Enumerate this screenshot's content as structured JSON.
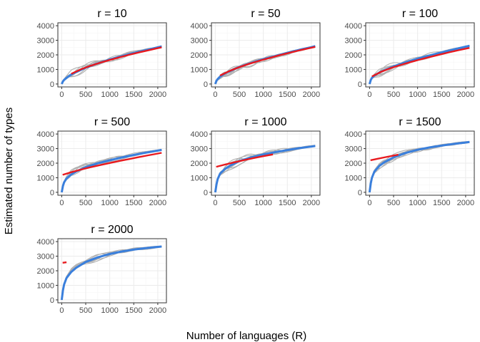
{
  "chart_data": {
    "type": "line",
    "xlabel": "Number of languages (R)",
    "ylabel": "Estimated number of types",
    "xlim": [
      0,
      2100
    ],
    "ylim": [
      0,
      4000
    ],
    "x_ticks": [
      0,
      500,
      1000,
      1500,
      2000
    ],
    "y_ticks": [
      0,
      1000,
      2000,
      3000,
      4000
    ],
    "x_tick_labels": [
      "0",
      "500",
      "1000",
      "1500",
      "2000"
    ],
    "y_tick_labels": [
      "0",
      "1000",
      "2000",
      "3000",
      "4000"
    ],
    "grid": true,
    "legend": "none",
    "colors": {
      "panel_border": "#333333",
      "grid_major": "#ebebeb",
      "grid_minor": "#f5f5f5",
      "replicates": "#b0b0b0",
      "mean_curve": "#3a7fdc",
      "fit_curve": "#e8191e"
    },
    "panels": [
      {
        "title": "r = 10",
        "mean": {
          "x": [
            0,
            25,
            50,
            100,
            200,
            300,
            500,
            750,
            1000,
            1250,
            1500,
            1750,
            2000,
            2080
          ],
          "y": [
            0,
            180,
            280,
            420,
            650,
            820,
            1120,
            1420,
            1680,
            1910,
            2130,
            2330,
            2520,
            2580
          ]
        },
        "fit": {
          "x": [
            200,
            400,
            600,
            800,
            1000,
            1200,
            1400,
            1600,
            1800,
            2000,
            2080
          ],
          "y": [
            700,
            1010,
            1250,
            1460,
            1650,
            1830,
            2000,
            2160,
            2310,
            2460,
            2520
          ]
        }
      },
      {
        "title": "r = 50",
        "mean": {
          "x": [
            0,
            25,
            50,
            100,
            200,
            300,
            500,
            750,
            1000,
            1250,
            1500,
            1750,
            2000,
            2080
          ],
          "y": [
            0,
            230,
            340,
            500,
            730,
            880,
            1170,
            1450,
            1700,
            1920,
            2140,
            2340,
            2530,
            2600
          ]
        },
        "fit": {
          "x": [
            100,
            300,
            500,
            700,
            900,
            1100,
            1300,
            1500,
            1700,
            1900,
            2080
          ],
          "y": [
            580,
            900,
            1160,
            1380,
            1580,
            1760,
            1940,
            2110,
            2270,
            2420,
            2550
          ]
        }
      },
      {
        "title": "r = 100",
        "mean": {
          "x": [
            0,
            25,
            50,
            100,
            200,
            300,
            500,
            750,
            1000,
            1250,
            1500,
            1750,
            2000,
            2080
          ],
          "y": [
            0,
            280,
            420,
            580,
            780,
            930,
            1210,
            1490,
            1740,
            1960,
            2170,
            2370,
            2560,
            2620
          ]
        },
        "fit": {
          "x": [
            50,
            250,
            450,
            650,
            850,
            1050,
            1250,
            1450,
            1650,
            1850,
            2080
          ],
          "y": [
            520,
            850,
            1100,
            1310,
            1500,
            1680,
            1850,
            2010,
            2170,
            2320,
            2480
          ]
        }
      },
      {
        "title": "r = 500",
        "mean": {
          "x": [
            0,
            25,
            50,
            100,
            200,
            300,
            500,
            750,
            1000,
            1250,
            1500,
            1750,
            2000,
            2080
          ],
          "y": [
            0,
            430,
            680,
            950,
            1230,
            1430,
            1730,
            1990,
            2200,
            2390,
            2560,
            2720,
            2860,
            2910
          ]
        },
        "fit": {
          "x": [
            20,
            200,
            400,
            600,
            800,
            1000,
            1200,
            1400,
            1600,
            1800,
            2000,
            2080
          ],
          "y": [
            1200,
            1380,
            1560,
            1720,
            1870,
            2010,
            2150,
            2280,
            2410,
            2540,
            2660,
            2710
          ]
        }
      },
      {
        "title": "r = 1000",
        "mean": {
          "x": [
            0,
            25,
            50,
            100,
            200,
            300,
            500,
            750,
            1000,
            1250,
            1500,
            1750,
            2000,
            2080
          ],
          "y": [
            0,
            550,
            900,
            1280,
            1600,
            1820,
            2140,
            2400,
            2600,
            2760,
            2900,
            3030,
            3140,
            3180
          ]
        },
        "fit": {
          "x": [
            20,
            200,
            400,
            600,
            800,
            1000,
            1200
          ],
          "y": [
            1750,
            1900,
            2060,
            2210,
            2350,
            2480,
            2600
          ]
        }
      },
      {
        "title": "r = 1500",
        "mean": {
          "x": [
            0,
            25,
            50,
            100,
            200,
            300,
            500,
            750,
            1000,
            1250,
            1500,
            1750,
            2000,
            2080
          ],
          "y": [
            0,
            620,
            1000,
            1420,
            1800,
            2050,
            2400,
            2700,
            2920,
            3080,
            3210,
            3320,
            3420,
            3450
          ]
        },
        "fit": {
          "x": [
            20,
            150,
            300,
            450,
            600
          ],
          "y": [
            2200,
            2290,
            2390,
            2490,
            2580
          ]
        }
      },
      {
        "title": "r = 2000",
        "mean": {
          "x": [
            0,
            25,
            50,
            100,
            200,
            300,
            500,
            750,
            1000,
            1250,
            1500,
            1750,
            2000,
            2080
          ],
          "y": [
            0,
            650,
            1050,
            1500,
            1920,
            2200,
            2600,
            2920,
            3150,
            3320,
            3450,
            3550,
            3640,
            3660
          ]
        },
        "fit": {
          "x": [
            20,
            100
          ],
          "y": [
            2550,
            2580
          ]
        }
      }
    ]
  }
}
